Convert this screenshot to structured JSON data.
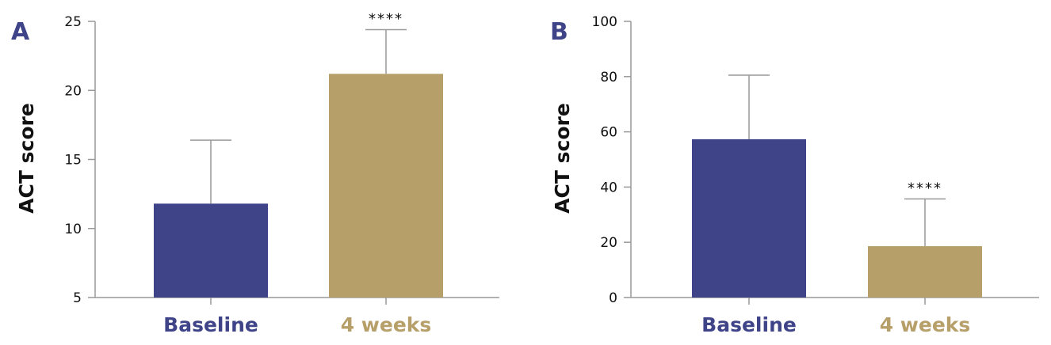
{
  "chart_data": [
    {
      "type": "bar",
      "panel": "A",
      "ylabel": "ACT score",
      "ylim": [
        5,
        25
      ],
      "yticks": [
        "5",
        "10",
        "15",
        "20",
        "25"
      ],
      "categories": [
        "Baseline",
        "4 weeks"
      ],
      "values": [
        11.8,
        21.2
      ],
      "errors": [
        4.6,
        3.2
      ],
      "significance": [
        "",
        "****"
      ],
      "colors": [
        "#3f4489",
        "#b79f69"
      ]
    },
    {
      "type": "bar",
      "panel": "B",
      "ylabel": "ACT score",
      "ylim": [
        0,
        100
      ],
      "yticks": [
        "0",
        "20",
        "40",
        "60",
        "80",
        "100"
      ],
      "categories": [
        "Baseline",
        "4 weeks"
      ],
      "values": [
        57.3,
        18.6
      ],
      "errors": [
        23.2,
        17.1
      ],
      "significance": [
        "",
        "****"
      ],
      "colors": [
        "#3f4489",
        "#b79f69"
      ]
    }
  ]
}
